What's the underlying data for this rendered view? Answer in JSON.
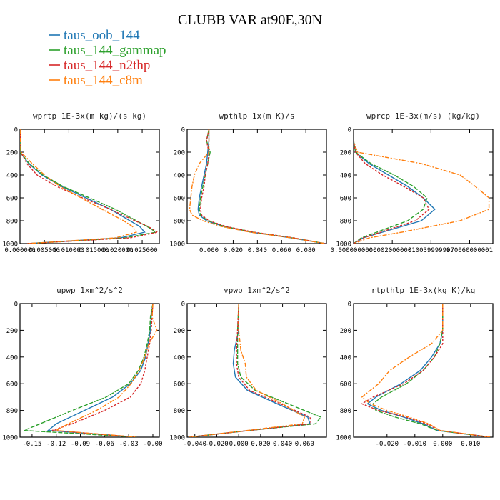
{
  "title": "CLUBB VAR at90E,30N",
  "legend": [
    {
      "label": "taus_oob_144",
      "color": "#1f77b4"
    },
    {
      "label": "taus_144_gammap",
      "color": "#2ca02c"
    },
    {
      "label": "taus_144_n2thp",
      "color": "#d62728"
    },
    {
      "label": "taus_144_c8m",
      "color": "#ff7f0e"
    }
  ],
  "chart_data": [
    {
      "type": "line",
      "title": "wprtp  1E-3x(m kg)/(s kg)",
      "xlim": [
        0,
        0.0285
      ],
      "ylim": [
        1000,
        0
      ],
      "xticks": [
        0,
        0.005,
        0.01,
        0.015,
        0.02,
        0.025
      ],
      "xtick_labels": [
        "0.000000",
        "0.005000",
        "0.010000",
        "0.015000",
        "0.020000",
        "0.025000"
      ],
      "yticks": [
        0,
        200,
        400,
        600,
        800,
        1000
      ],
      "ytick_labels": [
        "0",
        "200",
        "400",
        "600",
        "800",
        "1000"
      ],
      "y": [
        0,
        200,
        300,
        400,
        500,
        600,
        700,
        800,
        850,
        900,
        950,
        1000
      ],
      "series": [
        {
          "name": "taus_oob_144",
          "values": [
            0,
            0,
            0.0018,
            0.0045,
            0.0085,
            0.0135,
            0.0185,
            0.0225,
            0.0245,
            0.0255,
            0.0205,
            0.0015
          ]
        },
        {
          "name": "taus_144_gammap",
          "values": [
            0,
            0,
            0.0019,
            0.0047,
            0.0088,
            0.0142,
            0.0195,
            0.0238,
            0.026,
            0.0278,
            0.0215,
            0.0015
          ]
        },
        {
          "name": "taus_144_n2thp",
          "values": [
            0,
            0.0002,
            0.0014,
            0.0035,
            0.0075,
            0.0128,
            0.0185,
            0.0235,
            0.0262,
            0.0282,
            0.0225,
            0.0015
          ]
        },
        {
          "name": "taus_144_c8m",
          "values": [
            0,
            0.0002,
            0.0025,
            0.005,
            0.0082,
            0.0125,
            0.0168,
            0.0212,
            0.023,
            0.0238,
            0.0195,
            0.0015
          ]
        }
      ]
    },
    {
      "type": "line",
      "title": "wpthlp  1x(m K)/s",
      "xlim": [
        -0.018,
        0.097
      ],
      "ylim": [
        1000,
        0
      ],
      "xticks": [
        0,
        0.02,
        0.04,
        0.06,
        0.08
      ],
      "xtick_labels": [
        "0.000",
        "0.020",
        "0.040",
        "0.060",
        "0.080"
      ],
      "yticks": [
        0,
        200,
        400,
        600,
        800,
        1000
      ],
      "ytick_labels": [
        "0",
        "200",
        "400",
        "600",
        "800",
        "1000"
      ],
      "y": [
        0,
        100,
        200,
        300,
        400,
        500,
        600,
        700,
        750,
        800,
        850,
        900,
        950,
        1000
      ],
      "series": [
        {
          "name": "taus_oob_144",
          "values": [
            0,
            0,
            -0.001,
            -0.002,
            -0.004,
            -0.006,
            -0.008,
            -0.009,
            -0.008,
            -0.002,
            0.012,
            0.035,
            0.068,
            0.096
          ]
        },
        {
          "name": "taus_144_gammap",
          "values": [
            0,
            -0.002,
            0.001,
            -0.001,
            -0.003,
            -0.005,
            -0.007,
            -0.008,
            -0.007,
            -0.001,
            0.013,
            0.036,
            0.069,
            0.096
          ]
        },
        {
          "name": "taus_144_n2thp",
          "values": [
            0,
            -0.002,
            0,
            -0.001,
            -0.003,
            -0.004,
            -0.006,
            -0.007,
            -0.006,
            0,
            0.014,
            0.037,
            0.07,
            0.096
          ]
        },
        {
          "name": "taus_144_c8m",
          "values": [
            0,
            0,
            0,
            -0.008,
            -0.012,
            -0.014,
            -0.015,
            -0.016,
            -0.014,
            -0.005,
            0.01,
            0.034,
            0.068,
            0.096
          ]
        }
      ]
    },
    {
      "type": "line",
      "title": "wprcp  1E-3x(m/s) (kg/kg)",
      "xlim": [
        0,
        0.0072
      ],
      "ylim": [
        1000,
        0
      ],
      "xticks": [
        0,
        0.002,
        0.004,
        0.006
      ],
      "xtick_labels": [
        "0.0000000000",
        "0.0020000001",
        "0.0039999997",
        "0.0060000001"
      ],
      "yticks": [
        0,
        200,
        400,
        600,
        800,
        1000
      ],
      "ytick_labels": [
        "0",
        "200",
        "400",
        "600",
        "800",
        "1000"
      ],
      "y": [
        0,
        100,
        200,
        300,
        400,
        500,
        600,
        700,
        800,
        900,
        950,
        1000
      ],
      "series": [
        {
          "name": "taus_oob_144",
          "values": [
            0,
            0,
            0.0001,
            0.0008,
            0.0018,
            0.0028,
            0.0036,
            0.0042,
            0.0035,
            0.0015,
            0.0005,
            0
          ]
        },
        {
          "name": "taus_144_gammap",
          "values": [
            0,
            0,
            0.0001,
            0.0009,
            0.0021,
            0.0031,
            0.0038,
            0.0036,
            0.0028,
            0.0012,
            0.0004,
            0
          ]
        },
        {
          "name": "taus_144_n2thp",
          "values": [
            0,
            0,
            0.0001,
            0.0006,
            0.0015,
            0.0026,
            0.0036,
            0.0039,
            0.0032,
            0.0014,
            0.0005,
            0
          ]
        },
        {
          "name": "taus_144_c8m",
          "values": [
            0,
            0,
            0.0002,
            0.0035,
            0.0055,
            0.0063,
            0.007,
            0.007,
            0.0055,
            0.0025,
            0.0008,
            0
          ]
        }
      ]
    },
    {
      "type": "line",
      "title": "upwp  1xm^2/s^2",
      "xlim": [
        -0.165,
        0.008
      ],
      "ylim": [
        1000,
        0
      ],
      "xticks": [
        -0.15,
        -0.12,
        -0.09,
        -0.06,
        -0.03,
        0
      ],
      "xtick_labels": [
        "-0.15",
        "-0.12",
        "-0.09",
        "-0.06",
        "-0.03",
        "-0.00"
      ],
      "yticks": [
        0,
        200,
        400,
        600,
        800,
        1000
      ],
      "ytick_labels": [
        "0",
        "200",
        "400",
        "600",
        "800",
        "1000"
      ],
      "y": [
        0,
        100,
        200,
        300,
        400,
        500,
        600,
        700,
        800,
        900,
        950,
        1000
      ],
      "series": [
        {
          "name": "taus_oob_144",
          "values": [
            0,
            -0.002,
            -0.003,
            -0.006,
            -0.009,
            -0.015,
            -0.028,
            -0.05,
            -0.085,
            -0.12,
            -0.13,
            -0.02
          ]
        },
        {
          "name": "taus_144_gammap",
          "values": [
            0,
            -0.003,
            -0.004,
            -0.007,
            -0.011,
            -0.018,
            -0.03,
            -0.058,
            -0.1,
            -0.14,
            -0.16,
            -0.02
          ]
        },
        {
          "name": "taus_144_n2thp",
          "values": [
            0,
            -0.001,
            -0.002,
            -0.004,
            -0.007,
            -0.01,
            -0.015,
            -0.028,
            -0.06,
            -0.1,
            -0.125,
            -0.02
          ]
        },
        {
          "name": "taus_144_c8m",
          "values": [
            0,
            -0.001,
            0.005,
            -0.005,
            -0.01,
            -0.017,
            -0.027,
            -0.042,
            -0.07,
            -0.105,
            -0.12,
            -0.02
          ]
        }
      ]
    },
    {
      "type": "line",
      "title": "vpwp  1xm^2/s^2",
      "xlim": [
        -0.047,
        0.08
      ],
      "ylim": [
        1000,
        0
      ],
      "xticks": [
        -0.04,
        -0.02,
        0,
        0.02,
        0.04,
        0.06
      ],
      "xtick_labels": [
        "-0.040",
        "-0.020",
        "0.000",
        "0.020",
        "0.040",
        "0.060"
      ],
      "yticks": [
        0,
        200,
        400,
        600,
        800,
        1000
      ],
      "ytick_labels": [
        "0",
        "200",
        "400",
        "600",
        "800",
        "1000"
      ],
      "y": [
        0,
        200,
        350,
        450,
        550,
        650,
        750,
        850,
        900,
        950,
        1000
      ],
      "series": [
        {
          "name": "taus_oob_144",
          "values": [
            0,
            0,
            -0.004,
            -0.005,
            -0.003,
            0.008,
            0.035,
            0.063,
            0.065,
            0.01,
            -0.045
          ]
        },
        {
          "name": "taus_144_gammap",
          "values": [
            0,
            -0.001,
            -0.001,
            -0.001,
            0.002,
            0.015,
            0.045,
            0.075,
            0.07,
            0.01,
            -0.045
          ]
        },
        {
          "name": "taus_144_n2thp",
          "values": [
            0,
            -0.001,
            -0.002,
            -0.002,
            0,
            0.01,
            0.038,
            0.065,
            0.066,
            0.01,
            -0.045
          ]
        },
        {
          "name": "taus_144_c8m",
          "values": [
            0,
            0,
            0.002,
            0.006,
            0.007,
            0.016,
            0.04,
            0.06,
            0.058,
            0.008,
            -0.045
          ]
        }
      ]
    },
    {
      "type": "line",
      "title": "rtpthlp  1E-3x(kg K)/kg",
      "xlim": [
        -0.032,
        0.018
      ],
      "ylim": [
        1000,
        0
      ],
      "xticks": [
        -0.02,
        -0.01,
        0,
        0.01
      ],
      "xtick_labels": [
        "-0.020",
        "-0.010",
        "0.000",
        "0.010"
      ],
      "yticks": [
        0,
        200,
        400,
        600,
        800,
        1000
      ],
      "ytick_labels": [
        "0",
        "200",
        "400",
        "600",
        "800",
        "1000"
      ],
      "y": [
        0,
        200,
        300,
        400,
        500,
        600,
        700,
        750,
        800,
        850,
        900,
        950,
        1000
      ],
      "series": [
        {
          "name": "taus_oob_144",
          "values": [
            0,
            0,
            -0.001,
            -0.004,
            -0.008,
            -0.015,
            -0.024,
            -0.027,
            -0.022,
            -0.014,
            -0.007,
            -0.002,
            0.017
          ]
        },
        {
          "name": "taus_144_gammap",
          "values": [
            0,
            0,
            -0.001,
            -0.003,
            -0.007,
            -0.013,
            -0.022,
            -0.025,
            -0.024,
            -0.017,
            -0.008,
            -0.002,
            0.017
          ]
        },
        {
          "name": "taus_144_n2thp",
          "values": [
            0,
            0,
            0,
            -0.003,
            -0.007,
            -0.014,
            -0.025,
            -0.029,
            -0.023,
            -0.013,
            -0.006,
            -0.001,
            0.017
          ]
        },
        {
          "name": "taus_144_c8m",
          "values": [
            0,
            0,
            -0.004,
            -0.012,
            -0.019,
            -0.023,
            -0.029,
            -0.026,
            -0.02,
            -0.012,
            -0.005,
            -0.001,
            0.017
          ]
        }
      ]
    }
  ]
}
